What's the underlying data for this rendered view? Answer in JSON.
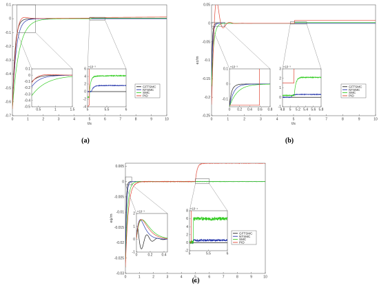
{
  "colors": {
    "GFTSMC": "#1a1a1a",
    "NTSMC": "#2233aa",
    "SMC": "#33cc22",
    "PID": "#e04433"
  },
  "chart_data": [
    {
      "id": "a",
      "type": "line",
      "caption": "(a)",
      "xlabel": "t/s",
      "ylabel": "ey/m",
      "xlim": [
        0,
        10
      ],
      "ylim": [
        -0.7,
        0.1
      ],
      "xticks": [
        "0",
        "1",
        "2",
        "3",
        "4",
        "5",
        "6",
        "7",
        "8",
        "9",
        "10"
      ],
      "yticks": [
        "0.1",
        "0",
        "-0.1",
        "-0.2",
        "-0.3",
        "-0.4",
        "-0.5",
        "-0.6",
        "-0.7"
      ],
      "legend": {
        "placement": "right of insets",
        "entries": [
          "GFTSMC",
          "NTSMC",
          "SMC",
          "PID"
        ]
      },
      "insets": [
        {
          "xlim": [
            0.3,
            1.5
          ],
          "ylim": [
            -0.5,
            0.1
          ],
          "xticks": [
            "0.5",
            "1",
            "1.5"
          ],
          "yticks": [
            "0.1",
            "0",
            "-0.1",
            "-0.2",
            "-0.3",
            "-0.4",
            "-0.5"
          ]
        },
        {
          "xlim": [
            5,
            6
          ],
          "ylim": [
            -4,
            6
          ],
          "exponent": "×10⁻³",
          "xticks": [
            "5",
            "5.5",
            "6"
          ],
          "yticks": [
            "6",
            "4",
            "2",
            "0",
            "-2",
            "-4"
          ]
        }
      ]
    },
    {
      "id": "b",
      "type": "line",
      "caption": "(b)",
      "xlabel": "t/s",
      "ylabel": "ez/m",
      "xlim": [
        0,
        10
      ],
      "ylim": [
        -0.25,
        0.05
      ],
      "xticks": [
        "0",
        "1",
        "2",
        "3",
        "4",
        "5",
        "6",
        "7",
        "8",
        "9",
        "10"
      ],
      "yticks": [
        "0.05",
        "0",
        "-0.05",
        "-0.1",
        "-0.15",
        "-0.2",
        "-0.25"
      ],
      "legend": {
        "placement": "right of insets",
        "entries": [
          "GFTSMC",
          "NTSMC",
          "SMC",
          "PID"
        ]
      },
      "insets": [
        {
          "xlim": [
            0,
            0.8
          ],
          "ylim": [
            -0.15,
            0.1
          ],
          "exponent": "×10⁻³",
          "xticks": [
            "0",
            "0.2",
            "0.4",
            "0.6",
            "0.8"
          ],
          "yticks": [
            "0.1",
            "0",
            "-0.1"
          ]
        },
        {
          "xlim": [
            4.8,
            5.8
          ],
          "ylim": [
            -1,
            3
          ],
          "exponent": "×10⁻³",
          "xticks": [
            "4.8",
            "5",
            "5.2",
            "5.4",
            "5.6",
            "5.8"
          ],
          "yticks": [
            "3",
            "2",
            "1",
            "0",
            "-1"
          ]
        }
      ]
    },
    {
      "id": "c",
      "type": "line",
      "caption": "(c)",
      "xlabel": "t/s",
      "ylabel": "eψ/m",
      "xlim": [
        0,
        10
      ],
      "ylim": [
        -0.03,
        0.006
      ],
      "xticks": [
        "0",
        "1",
        "2",
        "3",
        "4",
        "5",
        "6",
        "7",
        "8",
        "9",
        "10"
      ],
      "yticks": [
        "0.005",
        "0",
        "-0.005",
        "-0.01",
        "-0.015",
        "-0.02",
        "-0.025",
        "-0.03"
      ],
      "legend": {
        "placement": "right of insets",
        "entries": [
          "GFTSMC",
          "NTSMC",
          "SMC",
          "PID"
        ]
      },
      "insets": [
        {
          "xlim": [
            0,
            0.45
          ],
          "ylim": [
            -1,
            2
          ],
          "exponent": "×10⁻³",
          "xticks": [
            "0",
            "0.2",
            "0.4"
          ],
          "yticks": [
            "2",
            "1",
            "0",
            "-1"
          ]
        },
        {
          "xlim": [
            5,
            6
          ],
          "ylim": [
            -2,
            8
          ],
          "exponent": "×10⁻⁴",
          "xticks": [
            "5",
            "5.5",
            "6"
          ],
          "yticks": [
            "8",
            "6",
            "4",
            "2",
            "0",
            "-2"
          ]
        }
      ]
    }
  ]
}
